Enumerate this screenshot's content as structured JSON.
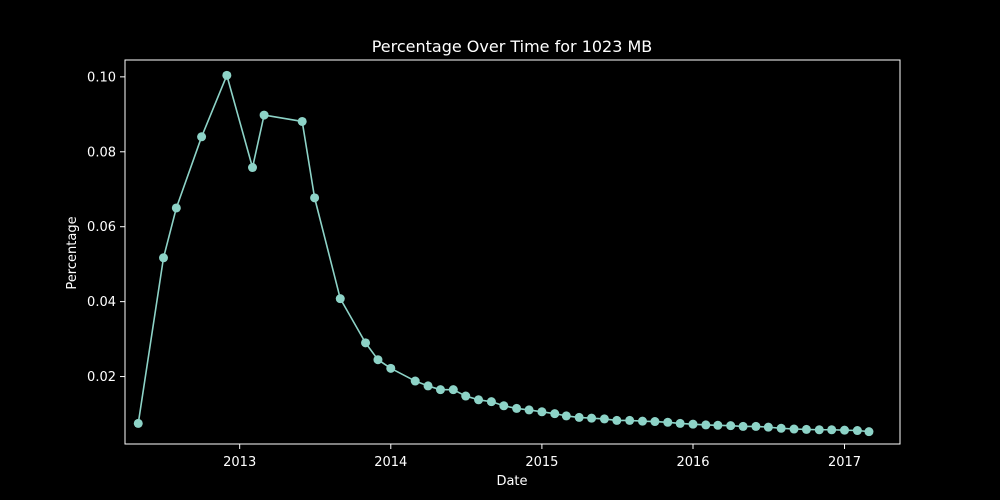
{
  "chart_data": {
    "type": "line",
    "title": "Percentage Over Time for 1023 MB",
    "xlabel": "Date",
    "ylabel": "Percentage",
    "x_ticks": [
      "2013",
      "2014",
      "2015",
      "2016",
      "2017"
    ],
    "y_ticks": [
      "0.02",
      "0.04",
      "0.06",
      "0.08",
      "0.10"
    ],
    "xlim": [
      "2012-03-30",
      "2017-05-15"
    ],
    "ylim": [
      0.002,
      0.1045
    ],
    "grid": false,
    "colors": {
      "background": "#000000",
      "foreground": "#ffffff",
      "series": "#8dd3c7"
    },
    "series": [
      {
        "marker": "circle",
        "x": [
          "2012-05-01",
          "2012-07-01",
          "2012-08-01",
          "2012-10-01",
          "2012-12-01",
          "2013-02-01",
          "2013-03-01",
          "2013-06-01",
          "2013-07-01",
          "2013-09-01",
          "2013-11-01",
          "2013-12-01",
          "2014-01-01",
          "2014-03-01",
          "2014-04-01",
          "2014-05-01",
          "2014-06-01",
          "2014-07-01",
          "2014-08-01",
          "2014-09-01",
          "2014-10-01",
          "2014-11-01",
          "2014-12-01",
          "2015-01-01",
          "2015-02-01",
          "2015-03-01",
          "2015-04-01",
          "2015-05-01",
          "2015-06-01",
          "2015-07-01",
          "2015-08-01",
          "2015-09-01",
          "2015-10-01",
          "2015-11-01",
          "2015-12-01",
          "2016-01-01",
          "2016-02-01",
          "2016-03-01",
          "2016-04-01",
          "2016-05-01",
          "2016-06-01",
          "2016-07-01",
          "2016-08-01",
          "2016-09-01",
          "2016-10-01",
          "2016-11-01",
          "2016-12-01",
          "2017-01-01",
          "2017-02-01",
          "2017-03-01"
        ],
        "values": [
          0.0075,
          0.0517,
          0.065,
          0.084,
          0.1004,
          0.0758,
          0.0898,
          0.0881,
          0.0677,
          0.0408,
          0.029,
          0.0245,
          0.0222,
          0.0188,
          0.0175,
          0.0165,
          0.0165,
          0.0148,
          0.0138,
          0.0133,
          0.0122,
          0.0115,
          0.0111,
          0.0106,
          0.0101,
          0.0095,
          0.0091,
          0.0089,
          0.0087,
          0.0083,
          0.0083,
          0.0081,
          0.008,
          0.0078,
          0.0075,
          0.0073,
          0.0071,
          0.007,
          0.0069,
          0.0067,
          0.0067,
          0.0065,
          0.0062,
          0.006,
          0.0059,
          0.0058,
          0.0058,
          0.0057,
          0.0056,
          0.0053
        ]
      }
    ]
  }
}
